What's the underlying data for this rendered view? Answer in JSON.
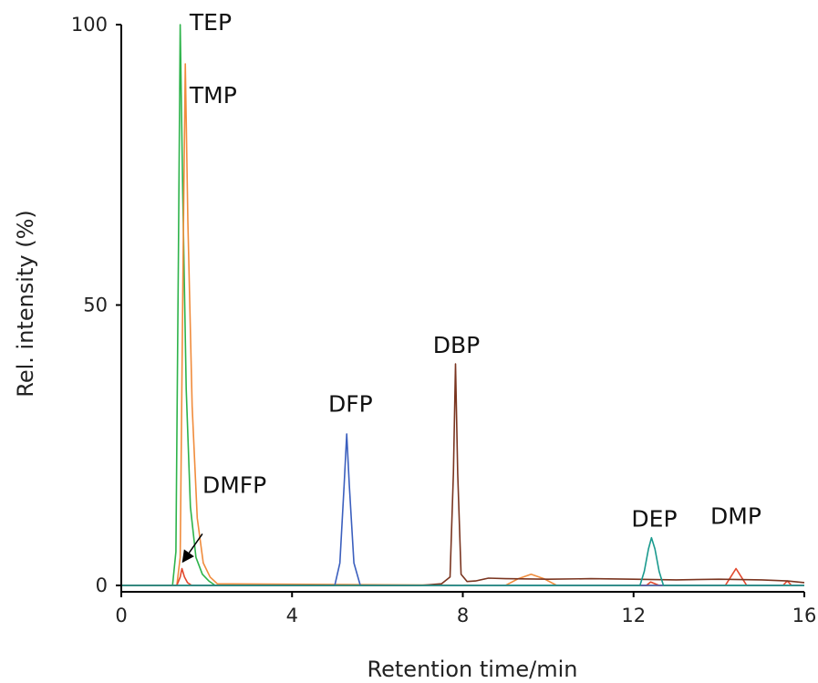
{
  "chart_data": {
    "type": "line",
    "title": "",
    "xlabel": "Retention time/min",
    "ylabel": "Rel. intensity (%)",
    "xlim": [
      0,
      16
    ],
    "ylim": [
      0,
      100
    ],
    "xticks": [
      0,
      4,
      8,
      12,
      16
    ],
    "yticks": [
      0,
      50,
      100
    ],
    "grid": false,
    "legend": "none",
    "series": [
      {
        "name": "TEP",
        "color": "#2db34a",
        "x": [
          0,
          1.2,
          1.28,
          1.34,
          1.38,
          1.44,
          1.52,
          1.62,
          1.75,
          1.9,
          2.05,
          2.2,
          16
        ],
        "y": [
          0,
          0,
          6,
          60,
          100,
          70,
          35,
          14,
          5,
          2,
          0.8,
          0,
          0
        ]
      },
      {
        "name": "TMP",
        "color": "#f08c3c",
        "x": [
          0,
          1.3,
          1.38,
          1.45,
          1.5,
          1.56,
          1.66,
          1.78,
          1.92,
          2.08,
          2.25,
          9.0,
          9.3,
          9.6,
          9.9,
          10.2,
          16
        ],
        "y": [
          0,
          0,
          5,
          60,
          93,
          65,
          32,
          12,
          4,
          1.5,
          0.3,
          0,
          1.2,
          2,
          1.2,
          0,
          0
        ]
      },
      {
        "name": "DMFP",
        "color": "#e2492e",
        "x": [
          0,
          1.3,
          1.38,
          1.42,
          1.48,
          1.55,
          1.65,
          12.3,
          12.4,
          12.6,
          14.15,
          14.3,
          14.4,
          14.5,
          14.65,
          15.5,
          15.6,
          15.7,
          16
        ],
        "y": [
          0,
          0,
          1.5,
          3,
          1.5,
          0.5,
          0,
          0,
          0.6,
          0,
          0,
          1.8,
          3,
          1.8,
          0,
          0,
          0.8,
          0,
          0
        ]
      },
      {
        "name": "DFP",
        "color": "#3b5fbe",
        "x": [
          0,
          5.0,
          5.12,
          5.22,
          5.28,
          5.34,
          5.45,
          5.6,
          16
        ],
        "y": [
          0,
          0,
          4,
          18,
          27,
          18,
          4,
          0,
          0
        ]
      },
      {
        "name": "DBP",
        "color": "#7a3520",
        "x": [
          0,
          7.0,
          7.5,
          7.7,
          7.78,
          7.83,
          7.88,
          7.96,
          8.1,
          8.3,
          8.6,
          9.0,
          10.0,
          11.0,
          12.0,
          13.0,
          14.0,
          15.0,
          15.6,
          16
        ],
        "y": [
          0,
          0,
          0.3,
          1.5,
          20,
          39.5,
          20,
          2,
          0.7,
          0.8,
          1.3,
          1.2,
          1.1,
          1.2,
          1.1,
          1.0,
          1.1,
          1.0,
          0.8,
          0.5
        ]
      },
      {
        "name": "DEP",
        "color": "#1a9a8e",
        "x": [
          0,
          12.15,
          12.25,
          12.35,
          12.42,
          12.5,
          12.6,
          12.7,
          16
        ],
        "y": [
          0,
          0,
          2.5,
          6.5,
          8.5,
          6.5,
          2.5,
          0,
          0
        ]
      },
      {
        "name": "DMP",
        "color": "#e2492e",
        "x": [],
        "y": []
      }
    ],
    "peak_labels": [
      {
        "text": "TEP",
        "x": 1.6,
        "y": 99
      },
      {
        "text": "TMP",
        "x": 1.6,
        "y": 86
      },
      {
        "text": "DMFP",
        "x": 1.9,
        "y": 16.5
      },
      {
        "text": "DFP",
        "x": 4.85,
        "y": 31
      },
      {
        "text": "DBP",
        "x": 7.3,
        "y": 41.5
      },
      {
        "text": "DEP",
        "x": 11.95,
        "y": 10.5
      },
      {
        "text": "DMP",
        "x": 13.8,
        "y": 11
      }
    ],
    "arrow": {
      "from": [
        1.9,
        9.2
      ],
      "to": [
        1.44,
        4.2
      ]
    }
  }
}
